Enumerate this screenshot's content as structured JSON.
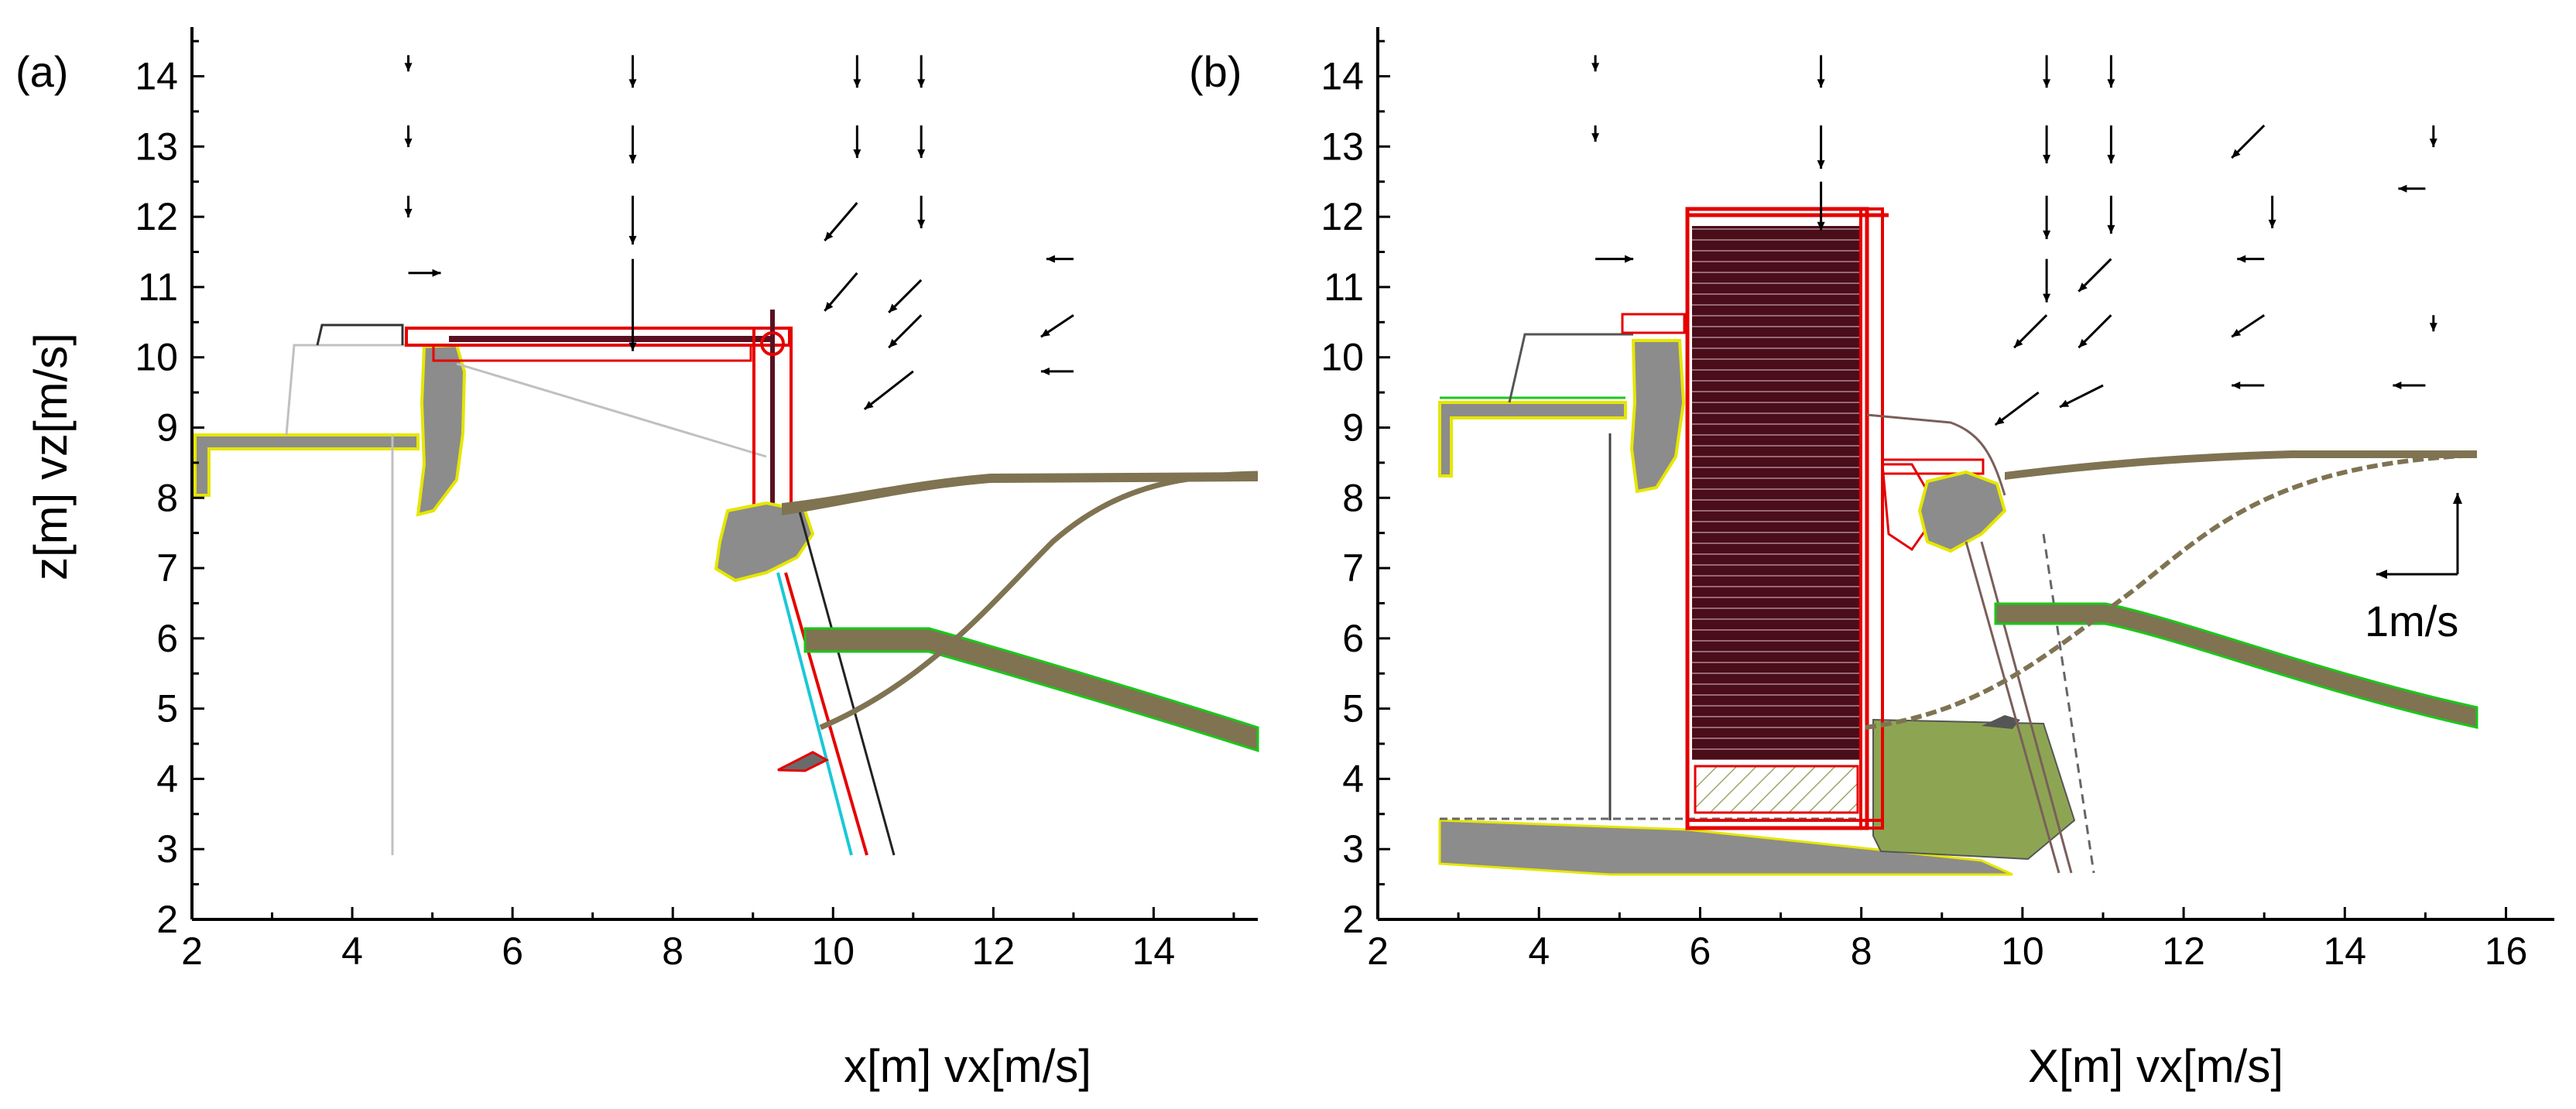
{
  "colors": {
    "axis": "#000000",
    "wall_gray": "#8c8c8c",
    "wall_edge": "#e6e600",
    "structure_red": "#e60000",
    "curtain_dark": "#4a0d1a",
    "soil": "#7f7352",
    "soil_edge": "#19c819",
    "mound": "#8da552",
    "brown_line": "#7a5f5a",
    "cyan": "#19c8d8",
    "velocity_arrow": "#000000",
    "velocity_highlight": "#e60000"
  },
  "chart_data": [
    {
      "type": "scatter",
      "panel_label": "(a)",
      "xlabel": "x[m] vx[m/s]",
      "ylabel": "z[m] vz[m/s]",
      "xlim": [
        2,
        15.3
      ],
      "ylim": [
        2,
        14.7
      ],
      "xticks": [
        2,
        4,
        6,
        8,
        10,
        12,
        14
      ],
      "xticklabels": [
        "2",
        "4",
        "6",
        "8",
        "10",
        "12",
        "14"
      ],
      "yticks": [
        2,
        3,
        4,
        5,
        6,
        7,
        8,
        9,
        10,
        11,
        12,
        13,
        14
      ],
      "yticklabels": [
        "2",
        "3",
        "4",
        "5",
        "6",
        "7",
        "8",
        "9",
        "10",
        "11",
        "12",
        "13",
        "14"
      ],
      "velocity_field": [
        {
          "x": 4.7,
          "z": 14.3,
          "vx": 0,
          "vz": -0.15
        },
        {
          "x": 4.7,
          "z": 13.3,
          "vx": 0,
          "vz": -0.2
        },
        {
          "x": 4.7,
          "z": 12.3,
          "vx": 0,
          "vz": -0.2
        },
        {
          "x": 4.7,
          "z": 11.2,
          "vx": 0.3,
          "vz": 0
        },
        {
          "x": 7.5,
          "z": 14.3,
          "vx": 0,
          "vz": -0.3
        },
        {
          "x": 7.5,
          "z": 13.3,
          "vx": 0,
          "vz": -0.35
        },
        {
          "x": 7.5,
          "z": 12.3,
          "vx": 0,
          "vz": -0.45
        },
        {
          "x": 7.5,
          "z": 11.4,
          "vx": 0,
          "vz": -0.85
        },
        {
          "x": 10.3,
          "z": 14.3,
          "vx": 0,
          "vz": -0.3
        },
        {
          "x": 10.3,
          "z": 13.3,
          "vx": 0,
          "vz": -0.3
        },
        {
          "x": 10.3,
          "z": 12.2,
          "vx": -0.3,
          "vz": -0.35
        },
        {
          "x": 10.3,
          "z": 11.2,
          "vx": -0.3,
          "vz": -0.35
        },
        {
          "x": 11.1,
          "z": 14.3,
          "vx": 0,
          "vz": -0.3
        },
        {
          "x": 11.1,
          "z": 13.3,
          "vx": 0,
          "vz": -0.3
        },
        {
          "x": 11.1,
          "z": 12.3,
          "vx": 0,
          "vz": -0.3
        },
        {
          "x": 11.1,
          "z": 11.1,
          "vx": -0.3,
          "vz": -0.3
        },
        {
          "x": 11.1,
          "z": 10.6,
          "vx": -0.3,
          "vz": -0.3
        },
        {
          "x": 11.0,
          "z": 9.8,
          "vx": -0.45,
          "vz": -0.35
        },
        {
          "x": 13.0,
          "z": 11.4,
          "vx": -0.25,
          "vz": 0
        },
        {
          "x": 13.0,
          "z": 10.6,
          "vx": -0.3,
          "vz": -0.2
        },
        {
          "x": 13.0,
          "z": 9.8,
          "vx": -0.3,
          "vz": 0
        }
      ]
    },
    {
      "type": "scatter",
      "panel_label": "(b)",
      "xlabel": "X[m] vx[m/s]",
      "ylabel": "",
      "xlim": [
        2,
        16.6
      ],
      "ylim": [
        2,
        14.7
      ],
      "xticks": [
        2,
        4,
        6,
        8,
        10,
        12,
        14,
        16
      ],
      "xticklabels": [
        "2",
        "4",
        "6",
        "8",
        "10",
        "12",
        "14",
        "16"
      ],
      "yticks": [
        2,
        3,
        4,
        5,
        6,
        7,
        8,
        9,
        10,
        11,
        12,
        13,
        14
      ],
      "yticklabels": [
        "2",
        "3",
        "4",
        "5",
        "6",
        "7",
        "8",
        "9",
        "10",
        "11",
        "12",
        "13",
        "14"
      ],
      "scale_arrow_label": "1m/s",
      "velocity_field": [
        {
          "x": 4.7,
          "z": 14.3,
          "vx": 0,
          "vz": -0.15
        },
        {
          "x": 4.7,
          "z": 13.3,
          "vx": 0,
          "vz": -0.15
        },
        {
          "x": 4.7,
          "z": 11.4,
          "vx": 0.35,
          "vz": 0
        },
        {
          "x": 7.5,
          "z": 14.3,
          "vx": 0,
          "vz": -0.3
        },
        {
          "x": 7.5,
          "z": 13.3,
          "vx": 0,
          "vz": -0.4
        },
        {
          "x": 7.5,
          "z": 12.5,
          "vx": 0,
          "vz": -0.45
        },
        {
          "x": 10.3,
          "z": 14.3,
          "vx": 0,
          "vz": -0.3
        },
        {
          "x": 10.3,
          "z": 13.3,
          "vx": 0,
          "vz": -0.35
        },
        {
          "x": 10.3,
          "z": 12.3,
          "vx": 0,
          "vz": -0.4
        },
        {
          "x": 10.3,
          "z": 11.4,
          "vx": 0,
          "vz": -0.4
        },
        {
          "x": 10.3,
          "z": 10.6,
          "vx": -0.3,
          "vz": -0.3
        },
        {
          "x": 10.2,
          "z": 9.5,
          "vx": -0.4,
          "vz": -0.3
        },
        {
          "x": 11.1,
          "z": 14.3,
          "vx": 0,
          "vz": -0.3
        },
        {
          "x": 11.1,
          "z": 13.3,
          "vx": 0,
          "vz": -0.35
        },
        {
          "x": 11.1,
          "z": 12.3,
          "vx": 0,
          "vz": -0.35
        },
        {
          "x": 11.1,
          "z": 11.4,
          "vx": -0.3,
          "vz": -0.3
        },
        {
          "x": 11.1,
          "z": 10.6,
          "vx": -0.3,
          "vz": -0.3
        },
        {
          "x": 11.0,
          "z": 9.6,
          "vx": -0.4,
          "vz": -0.2
        },
        {
          "x": 13.0,
          "z": 13.3,
          "vx": -0.3,
          "vz": -0.3
        },
        {
          "x": 13.1,
          "z": 12.3,
          "vx": 0,
          "vz": -0.3
        },
        {
          "x": 13.0,
          "z": 11.4,
          "vx": -0.25,
          "vz": 0
        },
        {
          "x": 13.0,
          "z": 10.6,
          "vx": -0.3,
          "vz": -0.2
        },
        {
          "x": 13.0,
          "z": 9.6,
          "vx": -0.3,
          "vz": 0
        },
        {
          "x": 15.1,
          "z": 13.3,
          "vx": 0,
          "vz": -0.2
        },
        {
          "x": 15.0,
          "z": 12.4,
          "vx": -0.25,
          "vz": 0
        },
        {
          "x": 15.1,
          "z": 10.6,
          "vx": 0,
          "vz": -0.15
        },
        {
          "x": 15.0,
          "z": 9.6,
          "vx": -0.3,
          "vz": 0
        }
      ]
    }
  ]
}
